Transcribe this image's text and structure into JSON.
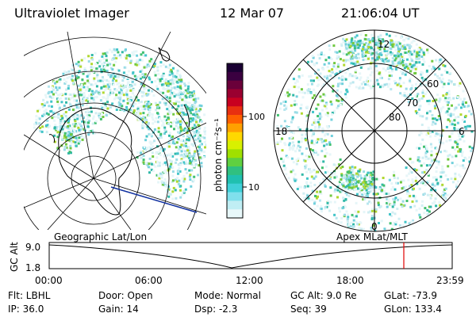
{
  "header": {
    "title": "Ultraviolet Imager",
    "date": "12 Mar 07",
    "time": "21:06:04 UT"
  },
  "colorbar": {
    "unit_label": "photon cm⁻²s⁻¹",
    "ticks": [
      "100",
      "10"
    ],
    "colors": [
      "#1a0033",
      "#3a0040",
      "#6a003a",
      "#9a0030",
      "#c80020",
      "#e83010",
      "#ff6000",
      "#ffa000",
      "#ffd800",
      "#d8f000",
      "#a0e000",
      "#60d040",
      "#30c080",
      "#20c0b0",
      "#40d0d8",
      "#80e0ec",
      "#c0eef4",
      "#e8f8fa"
    ]
  },
  "left_map": {
    "projection_label": "Geographic Lat/Lon"
  },
  "right_map": {
    "projection_label": "Apex MLat/MLT",
    "mlt_labels": {
      "top": "12",
      "left": "18",
      "right": "6",
      "bottom": "0"
    },
    "lat_labels": [
      "60",
      "70",
      "80"
    ]
  },
  "altitude_plot": {
    "ylabel": "GC Alt",
    "yticks": [
      "9.0",
      "1.8"
    ],
    "xticks": [
      "00:00",
      "06:00",
      "12:00",
      "18:00",
      "23:59"
    ],
    "marker_color": "#e00000"
  },
  "info": {
    "flt": "Flt: LBHL",
    "door": "Door: Open",
    "mode": "Mode: Normal",
    "gc_alt": "GC Alt: 9.0 Re",
    "glat": "GLat: -73.9",
    "ip": "IP: 36.0",
    "gain": "Gain: 14",
    "dsp": "Dsp:    -2.3",
    "seq": "Seq: 39",
    "glon": "GLon: 133.4"
  }
}
